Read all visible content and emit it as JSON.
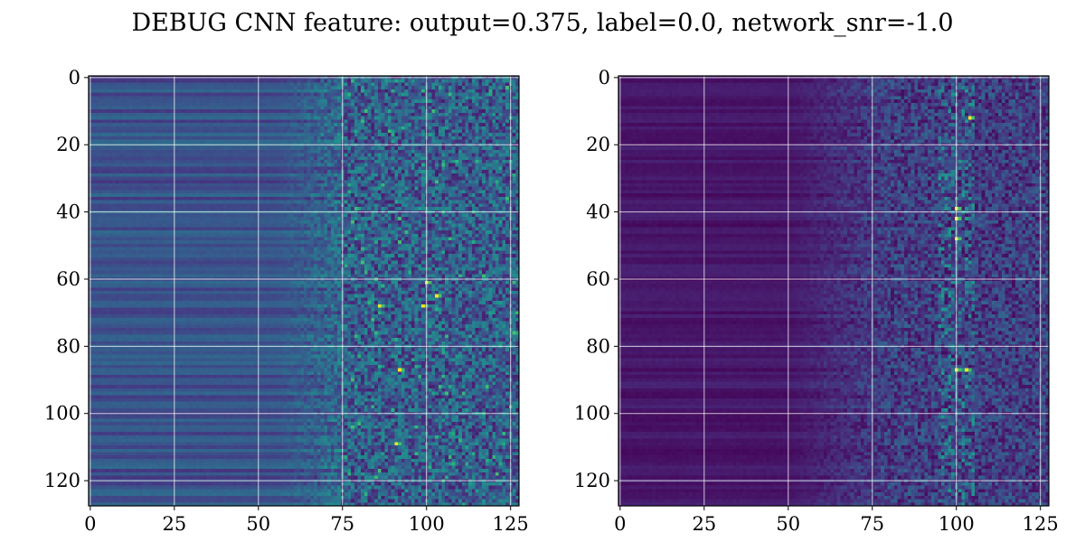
{
  "figure": {
    "title": "DEBUG CNN feature: output=0.375, label=0.0, network_snr=-1.0"
  },
  "chart_data": [
    {
      "type": "heatmap",
      "panel": "left",
      "title": "",
      "xlabel": "",
      "ylabel": "",
      "colormap": "viridis",
      "shape": [
        128,
        128
      ],
      "xlim": [
        0,
        127
      ],
      "ylim": [
        127,
        0
      ],
      "xticks": [
        0,
        25,
        50,
        75,
        100,
        125
      ],
      "yticks": [
        0,
        20,
        40,
        60,
        80,
        100,
        120
      ],
      "grid": true,
      "bright_points": [
        [
          86,
          68
        ],
        [
          99,
          68
        ],
        [
          103,
          65
        ],
        [
          92,
          87
        ],
        [
          100,
          61
        ],
        [
          91,
          109
        ]
      ]
    },
    {
      "type": "heatmap",
      "panel": "right",
      "title": "",
      "xlabel": "",
      "ylabel": "",
      "colormap": "viridis",
      "shape": [
        128,
        128
      ],
      "xlim": [
        0,
        127
      ],
      "ylim": [
        127,
        0
      ],
      "xticks": [
        0,
        25,
        50,
        75,
        100,
        125
      ],
      "yticks": [
        0,
        20,
        40,
        60,
        80,
        100,
        120
      ],
      "grid": true,
      "bright_points": [
        [
          100,
          48
        ],
        [
          100,
          87
        ],
        [
          103,
          87
        ],
        [
          104,
          12
        ],
        [
          100,
          39
        ],
        [
          100,
          42
        ]
      ]
    }
  ]
}
